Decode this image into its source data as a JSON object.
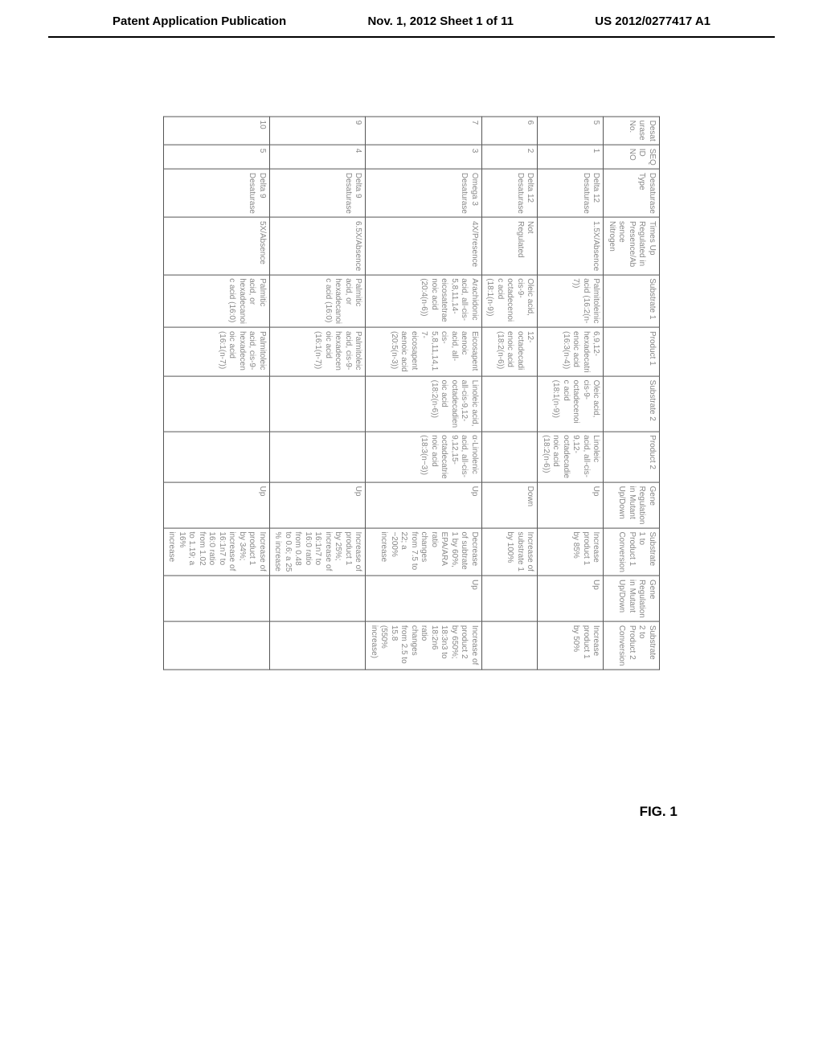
{
  "header": {
    "left": "Patent Application Publication",
    "center": "Nov. 1, 2012   Sheet 1 of 11",
    "right": "US 2012/0277417 A1"
  },
  "figure_label": "FIG. 1",
  "table": {
    "columns": [
      "Desat urase No.",
      "SEQ ID NO",
      "Desaturase Type",
      "Times Up Regulated in Presence/Ab sence Nitrogen",
      "Substrate 1",
      "Product 1",
      "Substrate 2",
      "Product 2",
      "Gene Regulation in Mutant Up/Down",
      "Substrate 1 to Product 1 Conversion",
      "Gene Regulation in Mutant Up/Down",
      "Substrate 2 to Product 2 Conversion"
    ],
    "col_widths": [
      "c-no",
      "c-seq",
      "c-type",
      "c-reg",
      "c-sub1",
      "c-prod1",
      "c-sub2",
      "c-prod2",
      "c-gene",
      "c-conv1",
      "c-gene2",
      "c-conv2"
    ],
    "rows": [
      {
        "desat_no": "5",
        "seq_id": "1",
        "type": "Delta 12 Desaturase",
        "times_up": "1.5X/Absence",
        "substrate1": "Palmitoleinic acid (16:2(n-7))",
        "product1": "6,9,12-hexadecatri enoic acid (16:3(n-4))",
        "substrate2": "Oleic acid, cis-9-octadecenoi c acid (18:1(n-9))",
        "product2": "Linoleic acid, all-cis-9,12-octadecadie noic acid (18:2(n-6))",
        "gene1": "Up",
        "conv1": "Increase product 1 by 85%",
        "gene2": "Up",
        "conv2": "Increase product 1 by 50%"
      },
      {
        "desat_no": "6",
        "seq_id": "2",
        "type": "Delta 12 Desaturase",
        "times_up": "Not Regulated",
        "substrate1": "Oleic acid, cis-9-octadecenoi c acid (18:1(n-9))",
        "product1": "12-octadecadi enoic acid (18:2(n-6))",
        "substrate2": "",
        "product2": "",
        "gene1": "Down",
        "conv1": "Increase of substrate 1 by 100%",
        "gene2": "",
        "conv2": ""
      },
      {
        "desat_no": "7",
        "seq_id": "3",
        "type": "Omega 3 Desaturase",
        "times_up": "4X/Presence",
        "substrate1": "Arachidonic acid, all-cis-5,8,11,14-eicosatetrae noic acid (20:4(n-6))",
        "product1": "Eicosapent aenoic acid, all-cis-5,8,11,14,1 7-eicosapent aenoic acid (20:5(n-3))",
        "substrate2": "Linoleic acid, all-cis-9,12-octadecadien oic acid (18:2(n-6))",
        "product2": "α-Linolenic acid, all-cis-9,12,15-octadecatrie noic acid (18:3(n−3))",
        "gene1": "Up",
        "conv1": "Decrease of subtrate 1 by 60%, EPA/ARA ratio changes from 7.5 to 22; a ~200% increase",
        "gene2": "Up",
        "conv2": "Increase of product 2 by 650%; 18:3n3 to 18:2n6 ratio changes from 2.5 to 15.8 (550% increase)"
      },
      {
        "desat_no": "9",
        "seq_id": "4",
        "type": "Delta 9 Desaturase",
        "times_up": "6.5X/Absence",
        "substrate1": "Palmitic acid, or hexadecanoi c acid (16:0)",
        "product1": "Palmitoleic acid, cis-9-hexadecen oic acid (16:1(n-7))",
        "substrate2": "",
        "product2": "",
        "gene1": "Up",
        "conv1": "Increase of product 1 by 25%; increase of 16:1n7 to 16:0 ratio from 0.48 to 0.6; a 25 % increase",
        "gene2": "",
        "conv2": ""
      },
      {
        "desat_no": "10",
        "seq_id": "5",
        "type": "Delta 9 Desaturase",
        "times_up": "5X/Absence",
        "substrate1": "Palmitic acid, or hexadecanoi c acid (16:0)",
        "product1": "Palmitoleic acid, cis-9-hexadecen oic acid (16:1(n-7))",
        "substrate2": "",
        "product2": "",
        "gene1": "Up",
        "conv1": "Increase of product 1 by 34%; increase of 16:1n7 to 16:0 ratio from 1.02 to 1.19; a 16% increase",
        "gene2": "",
        "conv2": ""
      }
    ]
  }
}
